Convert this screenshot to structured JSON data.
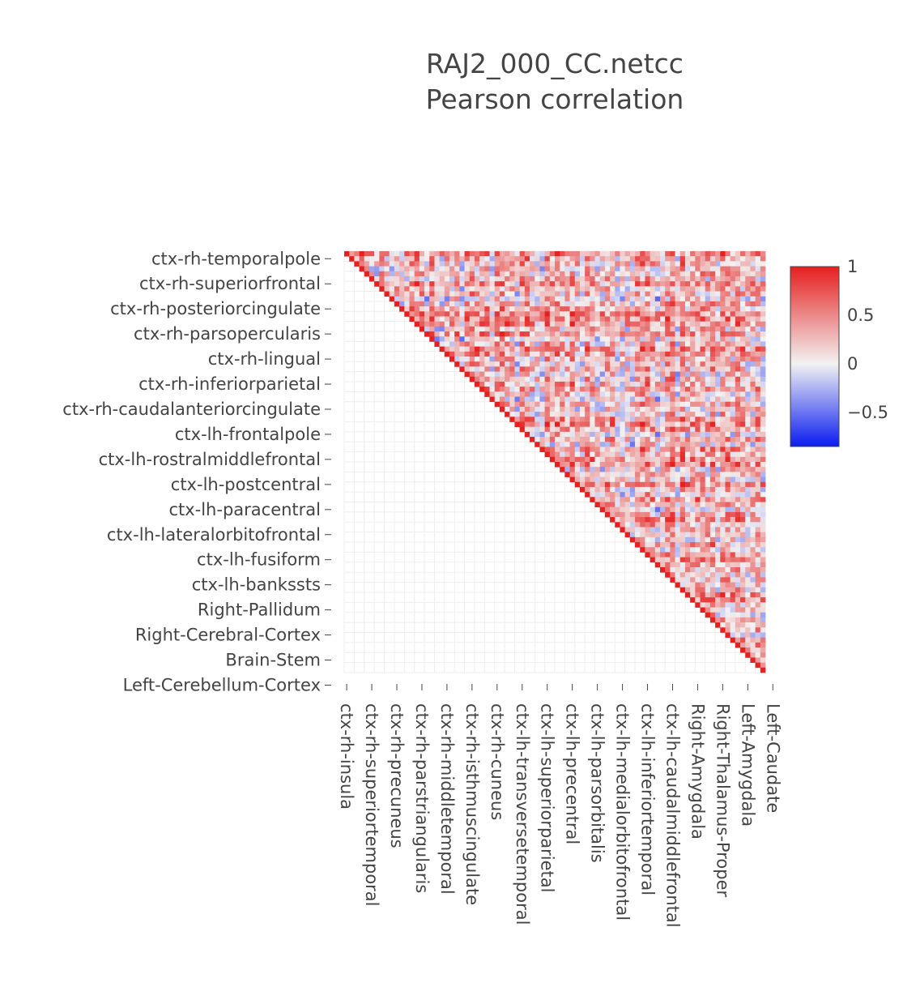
{
  "chart_data": {
    "type": "heatmap",
    "title_lines": [
      "RAJ2_000_CC.netcc",
      "Pearson correlation"
    ],
    "matrix_size": 84,
    "matrix_shape": "upper-triangle",
    "y_tick_labels": [
      "ctx-rh-temporalpole",
      "ctx-rh-superiorfrontal",
      "ctx-rh-posteriorcingulate",
      "ctx-rh-parsopercularis",
      "ctx-rh-lingual",
      "ctx-rh-inferiorparietal",
      "ctx-rh-caudalanteriorcingulate",
      "ctx-lh-frontalpole",
      "ctx-lh-rostralmiddlefrontal",
      "ctx-lh-postcentral",
      "ctx-lh-paracentral",
      "ctx-lh-lateralorbitofrontal",
      "ctx-lh-fusiform",
      "ctx-lh-bankssts",
      "Right-Pallidum",
      "Right-Cerebral-Cortex",
      "Brain-Stem",
      "Left-Cerebellum-Cortex"
    ],
    "x_tick_labels": [
      "ctx-rh-insula",
      "ctx-rh-superiortemporal",
      "ctx-rh-precuneus",
      "ctx-rh-parstriangularis",
      "ctx-rh-middletemporal",
      "ctx-rh-isthmuscingulate",
      "ctx-rh-cuneus",
      "ctx-lh-transversetemporal",
      "ctx-lh-superiorparietal",
      "ctx-lh-precentral",
      "ctx-lh-parsorbitalis",
      "ctx-lh-medialorbitofrontal",
      "ctx-lh-inferiortemporal",
      "ctx-lh-caudalmiddlefrontal",
      "Right-Amygdala",
      "Right-Thalamus-Proper",
      "Left-Amygdala",
      "Left-Caudate"
    ],
    "colorscale": {
      "min": -0.85,
      "max": 1,
      "stops": [
        {
          "v": -0.85,
          "color": "#0a1cf0"
        },
        {
          "v": 0,
          "color": "#f2f2f2"
        },
        {
          "v": 1,
          "color": "#e61f1f"
        }
      ],
      "tick_labels": [
        "1",
        "0.5",
        "0",
        "−0.5"
      ],
      "tick_values": [
        1,
        0.5,
        0,
        -0.5
      ]
    },
    "grid": true,
    "colorbar_position": "right"
  }
}
